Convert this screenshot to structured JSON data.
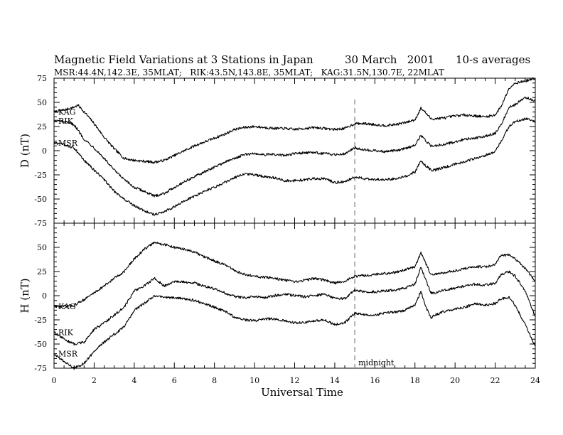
{
  "header": {
    "title": "Magnetic Field Variations at 3 Stations in Japan",
    "date": "30 March   2001",
    "averaging": "10-s averages",
    "stations": "MSR:44.4N,142.3E, 35MLAT;   RIK:43.5N,143.8E, 35MLAT;   KAG:31.5N,130.7E, 22MLAT"
  },
  "chart_data": [
    {
      "type": "line",
      "panel": "D",
      "ylabel": "D (nT)",
      "xlabel": "",
      "xlim": [
        0,
        24
      ],
      "ylim": [
        -75,
        75
      ],
      "yticks": [
        "75",
        "50",
        "25",
        "0",
        "-25",
        "-50",
        "-75"
      ],
      "grid": false,
      "series": [
        {
          "name": "KAG",
          "x": [
            0,
            0.5,
            1,
            1.2,
            1.6,
            2,
            2.5,
            3,
            3.5,
            4,
            4.5,
            5,
            5.5,
            6,
            6.5,
            7,
            7.5,
            8,
            8.5,
            9,
            9.5,
            10,
            10.5,
            11,
            11.5,
            12,
            12.5,
            13,
            13.5,
            14,
            14.5,
            15,
            15.5,
            16,
            16.5,
            17,
            17.5,
            18,
            18.3,
            18.5,
            18.8,
            19,
            19.5,
            20,
            20.5,
            21,
            21.5,
            22,
            22.3,
            22.7,
            23,
            23.5,
            24
          ],
          "y": [
            40,
            42,
            45,
            47,
            38,
            28,
            14,
            2,
            -8,
            -10,
            -11,
            -12,
            -10,
            -5,
            0,
            5,
            9,
            13,
            17,
            22,
            24,
            25,
            24,
            23,
            23,
            22,
            23,
            24,
            23,
            22,
            23,
            28,
            28,
            27,
            26,
            27,
            29,
            32,
            44,
            40,
            33,
            33,
            34,
            36,
            37,
            36,
            35,
            37,
            46,
            65,
            70,
            72,
            75
          ]
        },
        {
          "name": "RIK",
          "x": [
            0,
            0.5,
            1,
            1.5,
            2,
            2.5,
            3,
            3.5,
            4,
            4.5,
            5,
            5.5,
            6,
            6.5,
            7,
            7.5,
            8,
            8.5,
            9,
            9.5,
            10,
            10.5,
            11,
            11.5,
            12,
            12.5,
            13,
            13.5,
            14,
            14.5,
            15,
            15.5,
            16,
            16.5,
            17,
            17.5,
            18,
            18.3,
            18.5,
            18.8,
            19,
            19.5,
            20,
            20.5,
            21,
            21.5,
            22,
            22.3,
            22.7,
            23,
            23.5,
            24
          ],
          "y": [
            31,
            30,
            27,
            12,
            3,
            -8,
            -20,
            -30,
            -38,
            -42,
            -47,
            -44,
            -38,
            -32,
            -27,
            -22,
            -17,
            -12,
            -8,
            -4,
            -3,
            -4,
            -4,
            -5,
            -3,
            -2,
            -2,
            -3,
            -4,
            -3,
            3,
            1,
            0,
            -1,
            0,
            2,
            6,
            16,
            11,
            5,
            5,
            7,
            9,
            12,
            13,
            15,
            18,
            27,
            45,
            48,
            55,
            52
          ]
        },
        {
          "name": "MSR",
          "x": [
            0,
            0.5,
            1,
            1.5,
            2,
            2.5,
            3,
            3.5,
            4,
            4.5,
            5,
            5.5,
            6,
            6.5,
            7,
            7.5,
            8,
            8.5,
            9,
            9.5,
            10,
            10.5,
            11,
            11.5,
            12,
            12.5,
            13,
            13.5,
            14,
            14.5,
            15,
            15.5,
            16,
            16.5,
            17,
            17.5,
            18,
            18.3,
            18.5,
            18.8,
            19,
            19.5,
            20,
            20.5,
            21,
            21.5,
            22,
            22.3,
            22.7,
            23,
            23.5,
            24
          ],
          "y": [
            8,
            6,
            3,
            -10,
            -20,
            -30,
            -42,
            -50,
            -57,
            -62,
            -66,
            -63,
            -58,
            -52,
            -47,
            -42,
            -38,
            -33,
            -28,
            -24,
            -25,
            -27,
            -28,
            -31,
            -31,
            -30,
            -29,
            -29,
            -33,
            -32,
            -27,
            -29,
            -30,
            -30,
            -29,
            -27,
            -22,
            -10,
            -15,
            -20,
            -20,
            -17,
            -14,
            -11,
            -8,
            -5,
            -1,
            10,
            25,
            30,
            33,
            30
          ]
        }
      ]
    },
    {
      "type": "line",
      "panel": "H",
      "ylabel": "H (nT)",
      "xlabel": "Universal Time",
      "xlim": [
        0,
        24
      ],
      "ylim": [
        -75,
        75
      ],
      "yticks": [
        "75",
        "50",
        "25",
        "0",
        "-25",
        "-50",
        "-75"
      ],
      "xticks": [
        "0",
        "2",
        "4",
        "6",
        "8",
        "10",
        "12",
        "14",
        "16",
        "18",
        "20",
        "22",
        "24"
      ],
      "grid": false,
      "annotation": "midnight",
      "midnight_ut": 15,
      "series": [
        {
          "name": "KAG",
          "x": [
            0,
            0.5,
            1,
            1.5,
            2,
            2.5,
            3,
            3.5,
            4,
            4.5,
            5,
            5.5,
            6,
            6.5,
            7,
            7.5,
            8,
            8.5,
            9,
            9.5,
            10,
            10.5,
            11,
            11.5,
            12,
            12.5,
            13,
            13.5,
            14,
            14.5,
            15,
            15.5,
            16,
            16.5,
            17,
            17.5,
            18,
            18.3,
            18.5,
            18.8,
            19,
            19.5,
            20,
            20.5,
            21,
            21.5,
            22,
            22.3,
            22.7,
            23,
            23.5,
            24
          ],
          "y": [
            -11,
            -11,
            -10,
            -4,
            3,
            10,
            18,
            25,
            38,
            48,
            55,
            53,
            50,
            48,
            45,
            40,
            36,
            32,
            26,
            22,
            20,
            19,
            18,
            16,
            14,
            16,
            18,
            16,
            13,
            15,
            20,
            21,
            22,
            23,
            24,
            27,
            30,
            44,
            35,
            22,
            22,
            24,
            26,
            28,
            30,
            30,
            32,
            42,
            42,
            38,
            28,
            15
          ]
        },
        {
          "name": "RIK",
          "x": [
            0,
            0.5,
            1,
            1.5,
            2,
            2.5,
            3,
            3.5,
            4,
            4.5,
            5,
            5.5,
            6,
            6.5,
            7,
            7.5,
            8,
            8.5,
            9,
            9.5,
            10,
            10.5,
            11,
            11.5,
            12,
            12.5,
            13,
            13.5,
            14,
            14.5,
            15,
            15.5,
            16,
            16.5,
            17,
            17.5,
            18,
            18.3,
            18.5,
            18.8,
            19,
            19.5,
            20,
            20.5,
            21,
            21.5,
            22,
            22.3,
            22.7,
            23,
            23.5,
            24
          ],
          "y": [
            -38,
            -45,
            -50,
            -48,
            -35,
            -28,
            -20,
            -12,
            5,
            10,
            18,
            10,
            15,
            14,
            13,
            10,
            7,
            3,
            -1,
            -2,
            -1,
            -2,
            0,
            2,
            0,
            -1,
            0,
            2,
            -3,
            -3,
            6,
            4,
            4,
            5,
            6,
            8,
            12,
            30,
            18,
            3,
            3,
            6,
            8,
            10,
            12,
            11,
            13,
            22,
            25,
            20,
            5,
            -22
          ]
        },
        {
          "name": "MSR",
          "x": [
            0,
            0.5,
            1,
            1.5,
            2,
            2.5,
            3,
            3.5,
            4,
            4.5,
            5,
            5.5,
            6,
            6.5,
            7,
            7.5,
            8,
            8.5,
            9,
            9.5,
            10,
            10.5,
            11,
            11.5,
            12,
            12.5,
            13,
            13.5,
            14,
            14.5,
            15,
            15.5,
            16,
            16.5,
            17,
            17.5,
            18,
            18.3,
            18.5,
            18.8,
            19,
            19.5,
            20,
            20.5,
            21,
            21.5,
            22,
            22.3,
            22.7,
            23,
            23.5,
            24
          ],
          "y": [
            -60,
            -68,
            -75,
            -70,
            -58,
            -48,
            -40,
            -32,
            -15,
            -8,
            0,
            -2,
            -2,
            -3,
            -5,
            -8,
            -12,
            -16,
            -22,
            -25,
            -26,
            -24,
            -24,
            -26,
            -28,
            -28,
            -26,
            -25,
            -30,
            -28,
            -18,
            -20,
            -20,
            -18,
            -17,
            -15,
            -10,
            5,
            -10,
            -23,
            -20,
            -16,
            -14,
            -12,
            -8,
            -10,
            -8,
            -3,
            -2,
            -10,
            -30,
            -52
          ]
        }
      ]
    }
  ]
}
